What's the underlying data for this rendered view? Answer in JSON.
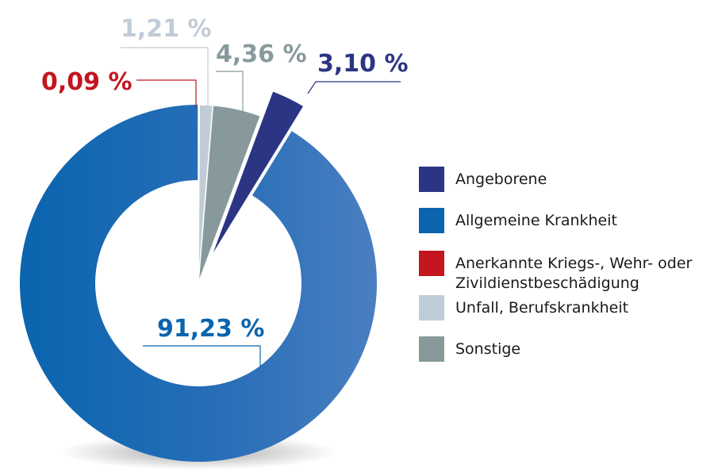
{
  "chart_data": {
    "type": "pie",
    "title": "",
    "slices": [
      {
        "name": "Allgemeine Krankheit",
        "value": 91.23,
        "label": "91,23 %",
        "color": "#0a64ae"
      },
      {
        "name": "Anerkannte Kriegs-, Wehr- oder Zivildienstbeschädigung",
        "value": 0.09,
        "label": "0,09 %",
        "color": "#c3161f"
      },
      {
        "name": "Unfall, Berufskrankheit",
        "value": 1.21,
        "label": "1,21 %",
        "color": "#c0ccd7"
      },
      {
        "name": "Sonstige",
        "value": 4.36,
        "label": "4,36 %",
        "color": "#87999b"
      },
      {
        "name": "Angeborene",
        "value": 3.1,
        "label": "3,10 %",
        "color": "#2b3584"
      }
    ],
    "legend": {
      "position": "right",
      "items": [
        {
          "lines": [
            "Angeborene"
          ],
          "color": "#2b3584"
        },
        {
          "lines": [
            "Allgemeine Krankheit"
          ],
          "color": "#0a64ae"
        },
        {
          "lines": [
            "Anerkannte Kriegs-, Wehr- oder",
            "Zivildienstbeschädigung"
          ],
          "color": "#c3161f"
        },
        {
          "lines": [
            "Unfall, Berufskrankheit"
          ],
          "color": "#c0ccd7"
        },
        {
          "lines": [
            "Sonstige"
          ],
          "color": "#87999b"
        }
      ]
    }
  }
}
